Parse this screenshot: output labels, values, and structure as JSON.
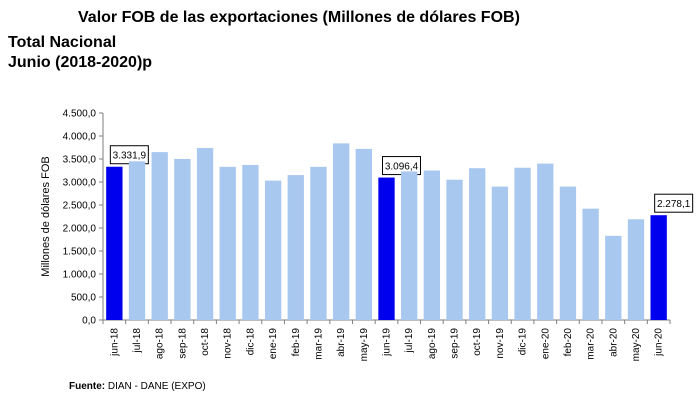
{
  "header": {
    "title": "Valor FOB de las exportaciones (Millones de dólares FOB)",
    "subtitle_line1": "Total Nacional",
    "subtitle_line2": "Junio (2018-2020)p"
  },
  "footer": {
    "source_label": "Fuente:",
    "source_text": " DIAN - DANE (EXPO)"
  },
  "colors": {
    "highlight": "#0000ee",
    "regular": "#a9c8f0"
  },
  "chart_data": {
    "type": "bar",
    "ylabel": "Millones de dólares FOB",
    "xlabel": "",
    "ylim": [
      0,
      4500
    ],
    "yticks": [
      0,
      500,
      1000,
      1500,
      2000,
      2500,
      3000,
      3500,
      4000,
      4500
    ],
    "ytick_labels": [
      "0,0",
      "500,0",
      "1.000,0",
      "1.500,0",
      "2.000,0",
      "2.500,0",
      "3.000,0",
      "3.500,0",
      "4.000,0",
      "4.500,0"
    ],
    "categories": [
      "jun-18",
      "jul-18",
      "ago-18",
      "sep-18",
      "oct-18",
      "nov-18",
      "dic-18",
      "ene-19",
      "feb-19",
      "mar-19",
      "abr-19",
      "may-19",
      "jun-19",
      "jul-19",
      "ago-19",
      "sep-19",
      "oct-19",
      "nov-19",
      "dic-19",
      "ene-20",
      "feb-20",
      "mar-20",
      "abr-20",
      "may-20",
      "jun-20"
    ],
    "values": [
      3331.9,
      3450,
      3650,
      3500,
      3740,
      3330,
      3370,
      3030,
      3150,
      3330,
      3840,
      3720,
      3096.4,
      3230,
      3250,
      3050,
      3300,
      2900,
      3310,
      3400,
      2900,
      2420,
      1830,
      2190,
      2278.1
    ],
    "highlighted": [
      "jun-18",
      "jun-19",
      "jun-20"
    ],
    "annotations": [
      {
        "category": "jun-18",
        "label": "3.331,9"
      },
      {
        "category": "jun-19",
        "label": "3.096,4"
      },
      {
        "category": "jun-20",
        "label": "2.278,1"
      }
    ],
    "grid": false,
    "legend": "none"
  }
}
